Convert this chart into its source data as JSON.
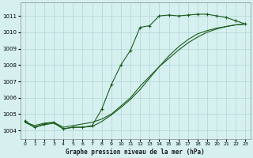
{
  "title": "Graphe pression niveau de la mer (hPa)",
  "bg_color": "#d6f0f0",
  "grid_color": "#b8d8d8",
  "line_color": "#1a5c1a",
  "xlim": [
    -0.5,
    23.5
  ],
  "ylim": [
    1003.5,
    1011.8
  ],
  "xticks": [
    0,
    1,
    2,
    3,
    4,
    5,
    6,
    7,
    8,
    9,
    10,
    11,
    12,
    13,
    14,
    15,
    16,
    17,
    18,
    19,
    20,
    21,
    22,
    23
  ],
  "yticks": [
    1004,
    1005,
    1006,
    1007,
    1008,
    1009,
    1010,
    1011
  ],
  "series1_x": [
    0,
    1,
    2,
    3,
    4,
    5,
    6,
    7,
    8,
    9,
    10,
    11,
    12,
    13,
    14,
    15,
    16,
    17,
    18,
    19,
    20,
    21,
    22,
    23
  ],
  "series1_y": [
    1004.6,
    1004.2,
    1004.4,
    1004.5,
    1004.1,
    1004.2,
    1004.2,
    1004.3,
    1005.3,
    1006.8,
    1008.0,
    1008.9,
    1010.3,
    1010.4,
    1011.0,
    1011.05,
    1011.0,
    1011.05,
    1011.1,
    1011.1,
    1011.0,
    1010.9,
    1010.7,
    1010.5
  ],
  "series2_x": [
    0,
    1,
    2,
    3,
    4,
    5,
    6,
    7,
    8,
    9,
    10,
    11,
    12,
    13,
    14,
    15,
    16,
    17,
    18,
    19,
    20,
    21,
    22,
    23
  ],
  "series2_y": [
    1004.5,
    1004.3,
    1004.45,
    1004.5,
    1004.2,
    1004.3,
    1004.4,
    1004.5,
    1004.7,
    1005.0,
    1005.5,
    1006.0,
    1006.7,
    1007.3,
    1007.9,
    1008.4,
    1008.9,
    1009.35,
    1009.7,
    1010.0,
    1010.2,
    1010.35,
    1010.45,
    1010.5
  ],
  "series3_x": [
    0,
    1,
    2,
    3,
    4,
    5,
    6,
    7,
    8,
    9,
    10,
    11,
    12,
    13,
    14,
    15,
    16,
    17,
    18,
    19,
    20,
    21,
    22,
    23
  ],
  "series3_y": [
    1004.5,
    1004.2,
    1004.35,
    1004.45,
    1004.1,
    1004.2,
    1004.2,
    1004.25,
    1004.55,
    1004.95,
    1005.4,
    1005.9,
    1006.5,
    1007.2,
    1007.9,
    1008.55,
    1009.1,
    1009.55,
    1009.9,
    1010.1,
    1010.25,
    1010.35,
    1010.45,
    1010.5
  ]
}
